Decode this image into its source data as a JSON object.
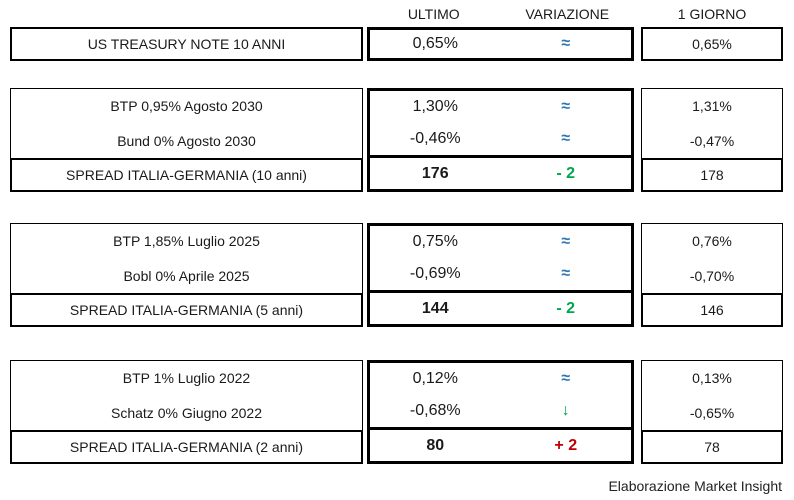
{
  "header": {
    "col_ultimo": "ULTIMO",
    "col_variazione": "VARIAZIONE",
    "col_giorno": "1 GIORNO"
  },
  "colors": {
    "flat": "#2E75B6",
    "down": "#00A550",
    "up": "#C00000"
  },
  "us_row": {
    "label": "US TREASURY NOTE 10 ANNI",
    "ultimo": "0,65%",
    "variazione": "≈",
    "variazione_type": "flat",
    "giorno": "0,65%"
  },
  "blocks": [
    {
      "bonds": [
        {
          "label": "BTP 0,95% Agosto 2030",
          "ultimo": "1,30%",
          "variazione": "≈",
          "variazione_type": "flat",
          "giorno": "1,31%"
        },
        {
          "label": "Bund 0% Agosto 2030",
          "ultimo": "-0,46%",
          "variazione": "≈",
          "variazione_type": "flat",
          "giorno": "-0,47%"
        }
      ],
      "spread": {
        "label": "SPREAD ITALIA-GERMANIA (10 anni)",
        "ultimo": "176",
        "variazione": "- 2",
        "variazione_type": "down",
        "giorno": "178"
      }
    },
    {
      "bonds": [
        {
          "label": "BTP 1,85% Luglio 2025",
          "ultimo": "0,75%",
          "variazione": "≈",
          "variazione_type": "flat",
          "giorno": "0,76%"
        },
        {
          "label": "Bobl 0% Aprile 2025",
          "ultimo": "-0,69%",
          "variazione": "≈",
          "variazione_type": "flat",
          "giorno": "-0,70%"
        }
      ],
      "spread": {
        "label": "SPREAD ITALIA-GERMANIA (5 anni)",
        "ultimo": "144",
        "variazione": "- 2",
        "variazione_type": "down",
        "giorno": "146"
      }
    },
    {
      "bonds": [
        {
          "label": "BTP 1% Luglio 2022",
          "ultimo": "0,12%",
          "variazione": "≈",
          "variazione_type": "flat",
          "giorno": "0,13%"
        },
        {
          "label": "Schatz 0% Giugno 2022",
          "ultimo": "-0,68%",
          "variazione": "↓",
          "variazione_type": "down",
          "giorno": "-0,65%"
        }
      ],
      "spread": {
        "label": "SPREAD ITALIA-GERMANIA (2 anni)",
        "ultimo": "80",
        "variazione": "+ 2",
        "variazione_type": "up",
        "giorno": "78"
      }
    }
  ],
  "footer": {
    "credit": "Elaborazione Market Insight"
  }
}
